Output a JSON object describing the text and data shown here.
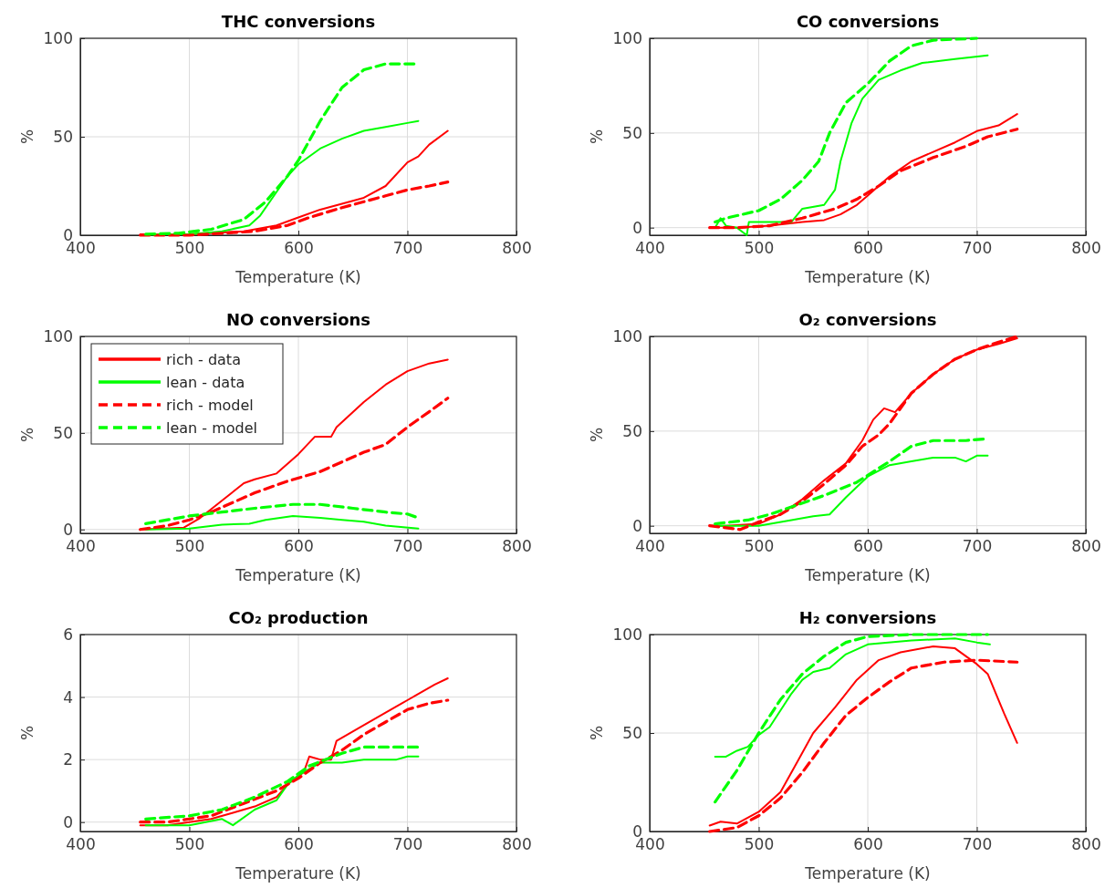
{
  "chart_data": [
    {
      "type": "line",
      "title": "THC conversions",
      "xlabel": "Temperature (K)",
      "ylabel": "%",
      "xlim": [
        400,
        800
      ],
      "xticks": [
        400,
        500,
        600,
        700,
        800
      ],
      "ylim": [
        0,
        100
      ],
      "yticks": [
        0,
        50,
        100
      ],
      "grid": true,
      "legend": false,
      "series": [
        {
          "color": "#ff0000",
          "line_style": "solid",
          "x": [
            455,
            500,
            520,
            550,
            580,
            600,
            620,
            640,
            660,
            680,
            700,
            710,
            720,
            737
          ],
          "values": [
            0.5,
            0.5,
            1,
            2,
            5,
            9,
            13,
            16,
            19,
            25,
            37,
            40,
            46,
            53
          ]
        },
        {
          "color": "#00ff00",
          "line_style": "solid",
          "x": [
            460,
            500,
            530,
            555,
            565,
            580,
            590,
            600,
            620,
            640,
            660,
            680,
            700,
            710
          ],
          "values": [
            0.5,
            0.5,
            2,
            5,
            10,
            22,
            30,
            36,
            44,
            49,
            53,
            55,
            57,
            58
          ]
        },
        {
          "color": "#ff0000",
          "line_style": "dashed",
          "x": [
            455,
            500,
            530,
            560,
            590,
            610,
            640,
            660,
            680,
            700,
            720,
            737
          ],
          "values": [
            0,
            0,
            1,
            2,
            5,
            9,
            14,
            17,
            20,
            23,
            25,
            27
          ]
        },
        {
          "color": "#00ff00",
          "line_style": "dashed",
          "x": [
            460,
            490,
            520,
            550,
            570,
            590,
            600,
            620,
            640,
            660,
            680,
            710
          ],
          "values": [
            0.5,
            1,
            3,
            8,
            17,
            30,
            38,
            58,
            75,
            84,
            87,
            87
          ]
        }
      ]
    },
    {
      "type": "line",
      "title": "CO conversions",
      "xlabel": "Temperature (K)",
      "ylabel": "%",
      "xlim": [
        400,
        800
      ],
      "xticks": [
        400,
        500,
        600,
        700,
        800
      ],
      "ylim": [
        -4,
        100
      ],
      "yticks": [
        0,
        50,
        100
      ],
      "grid": true,
      "legend": false,
      "series": [
        {
          "color": "#ff0000",
          "line_style": "solid",
          "x": [
            455,
            480,
            510,
            540,
            560,
            575,
            590,
            600,
            620,
            640,
            660,
            680,
            700,
            720,
            737
          ],
          "values": [
            0,
            0,
            1,
            3,
            4,
            7,
            12,
            17,
            27,
            35,
            40,
            45,
            51,
            54,
            60
          ]
        },
        {
          "color": "#00ff00",
          "line_style": "solid",
          "x": [
            460,
            465,
            470,
            480,
            489,
            491,
            530,
            540,
            560,
            570,
            575,
            585,
            595,
            610,
            630,
            650,
            680,
            710
          ],
          "values": [
            0,
            5,
            1,
            0,
            -4,
            3,
            3,
            10,
            12,
            20,
            35,
            55,
            68,
            78,
            83,
            87,
            89,
            91
          ]
        },
        {
          "color": "#ff0000",
          "line_style": "dashed",
          "x": [
            455,
            480,
            510,
            540,
            570,
            590,
            610,
            630,
            660,
            690,
            710,
            737
          ],
          "values": [
            0,
            0,
            1,
            5,
            10,
            15,
            22,
            30,
            37,
            43,
            48,
            52
          ]
        },
        {
          "color": "#00ff00",
          "line_style": "dashed",
          "x": [
            460,
            470,
            500,
            520,
            540,
            555,
            565,
            580,
            600,
            620,
            640,
            660,
            700
          ],
          "values": [
            3,
            5,
            9,
            15,
            25,
            35,
            50,
            66,
            76,
            88,
            96,
            99,
            100
          ]
        }
      ]
    },
    {
      "type": "line",
      "title": "NO conversions",
      "xlabel": "Temperature (K)",
      "ylabel": "%",
      "xlim": [
        400,
        800
      ],
      "xticks": [
        400,
        500,
        600,
        700,
        800
      ],
      "ylim": [
        -2,
        100
      ],
      "yticks": [
        0,
        50,
        100
      ],
      "grid": true,
      "legend": "top left",
      "series": [
        {
          "name": "rich - data",
          "color": "#ff0000",
          "line_style": "solid",
          "x": [
            455,
            495,
            510,
            530,
            550,
            560,
            580,
            600,
            615,
            630,
            635,
            660,
            680,
            700,
            720,
            737
          ],
          "values": [
            0,
            1,
            6,
            15,
            24,
            26,
            29,
            39,
            48,
            48,
            53,
            66,
            75,
            82,
            86,
            88
          ]
        },
        {
          "name": "lean - data",
          "color": "#00ff00",
          "line_style": "solid",
          "x": [
            460,
            500,
            530,
            555,
            570,
            595,
            620,
            640,
            660,
            680,
            710
          ],
          "values": [
            0,
            0.5,
            2.5,
            3,
            5,
            7,
            6,
            5,
            4,
            2,
            0.5
          ]
        },
        {
          "name": "rich - model",
          "color": "#ff0000",
          "line_style": "dashed",
          "x": [
            455,
            480,
            500,
            520,
            540,
            560,
            590,
            620,
            640,
            660,
            680,
            700,
            720,
            737
          ],
          "values": [
            0,
            2,
            5,
            9,
            14,
            19,
            25,
            30,
            35,
            40,
            44,
            53,
            61,
            68
          ]
        },
        {
          "name": "lean - model",
          "color": "#00ff00",
          "line_style": "dashed",
          "x": [
            460,
            480,
            500,
            530,
            560,
            595,
            620,
            650,
            680,
            700,
            710
          ],
          "values": [
            3,
            5,
            7,
            9,
            11,
            13,
            13,
            11,
            9,
            8,
            6
          ]
        }
      ]
    },
    {
      "type": "line",
      "title": "O₂ conversions",
      "xlabel": "Temperature (K)",
      "ylabel": "%",
      "xlim": [
        400,
        800
      ],
      "xticks": [
        400,
        500,
        600,
        700,
        800
      ],
      "ylim": [
        -4,
        100
      ],
      "yticks": [
        0,
        50,
        100
      ],
      "grid": true,
      "legend": false,
      "series": [
        {
          "color": "#ff0000",
          "line_style": "solid",
          "x": [
            455,
            470,
            500,
            520,
            540,
            560,
            580,
            595,
            605,
            615,
            625,
            640,
            660,
            680,
            700,
            720,
            737
          ],
          "values": [
            0,
            0,
            1,
            6,
            14,
            24,
            33,
            45,
            56,
            62,
            60,
            70,
            80,
            88,
            93,
            96,
            99
          ]
        },
        {
          "color": "#00ff00",
          "line_style": "solid",
          "x": [
            460,
            500,
            530,
            550,
            565,
            580,
            600,
            620,
            640,
            660,
            680,
            690,
            700,
            710
          ],
          "values": [
            0,
            0,
            3,
            5,
            6,
            15,
            26,
            32,
            34,
            36,
            36,
            34,
            37,
            37
          ]
        },
        {
          "color": "#ff0000",
          "line_style": "dashed",
          "x": [
            455,
            483,
            500,
            520,
            540,
            560,
            580,
            595,
            610,
            620,
            640,
            660,
            680,
            700,
            720,
            737
          ],
          "values": [
            0,
            -2,
            2,
            6,
            13,
            22,
            32,
            42,
            48,
            54,
            70,
            80,
            88,
            93,
            97,
            100
          ]
        },
        {
          "color": "#00ff00",
          "line_style": "dashed",
          "x": [
            460,
            490,
            510,
            530,
            560,
            590,
            620,
            640,
            660,
            690,
            710
          ],
          "values": [
            1,
            3,
            6,
            10,
            16,
            23,
            34,
            42,
            45,
            45,
            46
          ]
        }
      ]
    },
    {
      "type": "line",
      "title": "CO₂ production",
      "xlabel": "Temperature (K)",
      "ylabel": "%",
      "xlim": [
        400,
        800
      ],
      "xticks": [
        400,
        500,
        600,
        700,
        800
      ],
      "ylim": [
        -0.3,
        6
      ],
      "yticks": [
        0,
        2,
        4,
        6
      ],
      "grid": true,
      "legend": false,
      "series": [
        {
          "color": "#ff0000",
          "line_style": "solid",
          "x": [
            455,
            480,
            520,
            540,
            560,
            580,
            590,
            605,
            610,
            620,
            630,
            635,
            660,
            680,
            695,
            700,
            710,
            725,
            737
          ],
          "values": [
            -0.1,
            -0.1,
            0.1,
            0.3,
            0.5,
            0.8,
            1.2,
            1.6,
            2.1,
            2.0,
            2.0,
            2.6,
            3.1,
            3.5,
            3.8,
            3.9,
            4.1,
            4.4,
            4.6
          ]
        },
        {
          "color": "#00ff00",
          "line_style": "solid",
          "x": [
            460,
            500,
            530,
            540,
            560,
            580,
            590,
            600,
            620,
            640,
            660,
            690,
            700,
            710
          ],
          "values": [
            -0.1,
            -0.1,
            0.1,
            -0.1,
            0.4,
            0.7,
            1.2,
            1.5,
            1.9,
            1.9,
            2.0,
            2.0,
            2.1,
            2.1
          ]
        },
        {
          "color": "#ff0000",
          "line_style": "dashed",
          "x": [
            455,
            480,
            520,
            550,
            580,
            600,
            620,
            640,
            660,
            680,
            700,
            720,
            737
          ],
          "values": [
            0,
            0,
            0.2,
            0.6,
            1.0,
            1.4,
            1.9,
            2.3,
            2.8,
            3.2,
            3.6,
            3.8,
            3.9
          ]
        },
        {
          "color": "#00ff00",
          "line_style": "dashed",
          "x": [
            460,
            500,
            530,
            560,
            590,
            610,
            640,
            660,
            690,
            710
          ],
          "values": [
            0.1,
            0.2,
            0.4,
            0.8,
            1.3,
            1.8,
            2.2,
            2.4,
            2.4,
            2.4
          ]
        }
      ]
    },
    {
      "type": "line",
      "title": "H₂ conversions",
      "xlabel": "Temperature (K)",
      "ylabel": "%",
      "xlim": [
        400,
        800
      ],
      "xticks": [
        400,
        500,
        600,
        700,
        800
      ],
      "ylim": [
        0,
        100
      ],
      "yticks": [
        0,
        50,
        100
      ],
      "grid": true,
      "legend": false,
      "series": [
        {
          "color": "#ff0000",
          "line_style": "solid",
          "x": [
            455,
            465,
            480,
            500,
            520,
            535,
            550,
            570,
            590,
            610,
            630,
            660,
            680,
            700,
            710,
            725,
            737
          ],
          "values": [
            3,
            5,
            4,
            10,
            20,
            35,
            50,
            63,
            77,
            87,
            91,
            94,
            93,
            85,
            80,
            60,
            45
          ]
        },
        {
          "color": "#00ff00",
          "line_style": "solid",
          "x": [
            460,
            470,
            480,
            490,
            500,
            510,
            530,
            540,
            550,
            565,
            580,
            600,
            640,
            680,
            700,
            712
          ],
          "values": [
            38,
            38,
            41,
            43,
            49,
            53,
            70,
            77,
            81,
            83,
            90,
            95,
            97,
            98,
            96,
            95
          ]
        },
        {
          "color": "#ff0000",
          "line_style": "dashed",
          "x": [
            455,
            480,
            500,
            520,
            540,
            560,
            580,
            600,
            620,
            640,
            670,
            700,
            737
          ],
          "values": [
            0,
            2,
            8,
            17,
            30,
            45,
            59,
            68,
            76,
            83,
            86,
            87,
            86
          ]
        },
        {
          "color": "#00ff00",
          "line_style": "dashed",
          "x": [
            460,
            480,
            500,
            520,
            540,
            560,
            580,
            600,
            640,
            680,
            710
          ],
          "values": [
            15,
            31,
            50,
            67,
            80,
            89,
            96,
            99,
            100,
            100,
            100
          ]
        }
      ]
    }
  ]
}
